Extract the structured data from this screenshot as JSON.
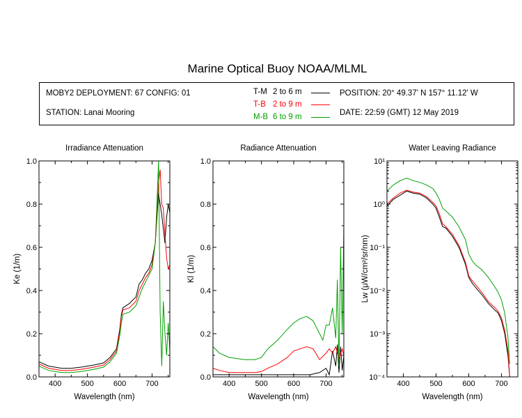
{
  "title": "Marine Optical Buoy NOAA/MLML",
  "header": {
    "deployment": "MOBY2 DEPLOYMENT: 67 CONFIG: 01",
    "station": "STATION: Lanai Mooring",
    "position": "POSITION: 20° 49.37' N   157° 11.12' W",
    "date": "DATE: 22:59 (GMT) 12 May 2019"
  },
  "legend": [
    {
      "code": "T-M",
      "range": "2 to 6  m",
      "color": "#000000"
    },
    {
      "code": "T-B",
      "range": "2 to 9  m",
      "color": "#ff0000"
    },
    {
      "code": "M-B",
      "range": "6 to 9  m",
      "color": "#00a000"
    }
  ],
  "chart_data": [
    {
      "type": "line",
      "title": "Irradiance Attenuation",
      "xlabel": "Wavelength (nm)",
      "ylabel": "Ke  (1/m)",
      "xlim": [
        350,
        755
      ],
      "ylim": [
        0,
        1
      ],
      "xticks": [
        400,
        500,
        600,
        700
      ],
      "yticks": [
        0.0,
        0.2,
        0.4,
        0.6,
        0.8,
        1.0
      ],
      "ytick_labels": [
        "0.0",
        "0.2",
        "0.4",
        "0.6",
        "0.8",
        "1.0"
      ],
      "series": [
        {
          "name": "T-M",
          "color": "#000000",
          "x": [
            350,
            380,
            400,
            420,
            450,
            480,
            500,
            520,
            550,
            570,
            590,
            600,
            605,
            610,
            630,
            650,
            660,
            670,
            680,
            690,
            700,
            710,
            720,
            730,
            740,
            745,
            750,
            755
          ],
          "y": [
            0.07,
            0.05,
            0.045,
            0.04,
            0.04,
            0.045,
            0.05,
            0.055,
            0.065,
            0.09,
            0.13,
            0.22,
            0.29,
            0.32,
            0.34,
            0.37,
            0.43,
            0.45,
            0.48,
            0.5,
            0.54,
            0.62,
            0.85,
            0.75,
            0.62,
            0.74,
            0.8,
            0.76
          ]
        },
        {
          "name": "T-B",
          "color": "#ff0000",
          "x": [
            350,
            380,
            400,
            420,
            450,
            480,
            500,
            520,
            550,
            570,
            590,
            600,
            605,
            610,
            630,
            650,
            660,
            670,
            680,
            690,
            700,
            710,
            720,
            725,
            730,
            735,
            740,
            745,
            750,
            755
          ],
          "y": [
            0.06,
            0.04,
            0.035,
            0.03,
            0.03,
            0.035,
            0.04,
            0.045,
            0.055,
            0.08,
            0.12,
            0.21,
            0.28,
            0.31,
            0.32,
            0.35,
            0.4,
            0.43,
            0.46,
            0.48,
            0.52,
            0.62,
            0.9,
            0.96,
            0.8,
            0.78,
            0.66,
            0.55,
            0.5,
            0.52
          ]
        },
        {
          "name": "M-B",
          "color": "#00a000",
          "x": [
            350,
            380,
            400,
            420,
            450,
            480,
            500,
            520,
            550,
            570,
            590,
            600,
            605,
            610,
            630,
            650,
            660,
            670,
            680,
            690,
            700,
            710,
            715,
            720,
            725,
            730,
            735,
            740,
            745,
            750,
            755
          ],
          "y": [
            0.05,
            0.03,
            0.025,
            0.02,
            0.02,
            0.025,
            0.03,
            0.035,
            0.045,
            0.07,
            0.11,
            0.19,
            0.25,
            0.29,
            0.3,
            0.33,
            0.37,
            0.41,
            0.44,
            0.47,
            0.5,
            0.62,
            0.8,
            1.0,
            0.3,
            0.05,
            0.35,
            0.2,
            0.1,
            0.25,
            0.12
          ]
        }
      ]
    },
    {
      "type": "line",
      "title": "Radiance Attenuation",
      "xlabel": "Wavelength (nm)",
      "ylabel": "Kl  (1/m)",
      "xlim": [
        350,
        755
      ],
      "ylim": [
        0,
        1
      ],
      "xticks": [
        400,
        500,
        600,
        700
      ],
      "yticks": [
        0.0,
        0.2,
        0.4,
        0.6,
        0.8,
        1.0
      ],
      "ytick_labels": [
        "0.0",
        "0.2",
        "0.4",
        "0.6",
        "0.8",
        "1.0"
      ],
      "series": [
        {
          "name": "T-M",
          "color": "#000000",
          "x": [
            350,
            380,
            400,
            450,
            500,
            550,
            600,
            650,
            680,
            700,
            710,
            720,
            730,
            735,
            740,
            745,
            750,
            755
          ],
          "y": [
            0.01,
            0.01,
            0.01,
            0.01,
            0.01,
            0.01,
            0.01,
            0.01,
            0.02,
            0.04,
            0.01,
            0.12,
            0.05,
            0.15,
            0.02,
            0.14,
            0.03,
            0.1
          ]
        },
        {
          "name": "T-B",
          "color": "#ff0000",
          "x": [
            350,
            370,
            400,
            450,
            480,
            500,
            520,
            550,
            580,
            600,
            620,
            640,
            660,
            680,
            700,
            710,
            720,
            730,
            740,
            750,
            755
          ],
          "y": [
            0.04,
            0.03,
            0.02,
            0.02,
            0.02,
            0.025,
            0.04,
            0.06,
            0.09,
            0.12,
            0.13,
            0.14,
            0.13,
            0.08,
            0.11,
            0.13,
            0.11,
            0.14,
            0.08,
            0.13,
            0.1
          ]
        },
        {
          "name": "M-B",
          "color": "#00a000",
          "x": [
            350,
            370,
            400,
            450,
            480,
            500,
            520,
            550,
            580,
            600,
            620,
            640,
            660,
            680,
            690,
            700,
            710,
            720,
            730,
            735,
            740,
            745,
            750,
            755
          ],
          "y": [
            0.14,
            0.11,
            0.09,
            0.08,
            0.08,
            0.09,
            0.13,
            0.17,
            0.22,
            0.25,
            0.27,
            0.28,
            0.26,
            0.2,
            0.17,
            0.24,
            0.24,
            0.32,
            0.18,
            0.45,
            0.05,
            0.6,
            0.2,
            0.7
          ]
        }
      ]
    },
    {
      "type": "line",
      "title": "Water Leaving Radiance",
      "xlabel": "Wavelength (nm)",
      "ylabel": "Lw  (μW/cm²/sr/nm)",
      "yscale": "log",
      "xlim": [
        350,
        750
      ],
      "ylim": [
        0.0001,
        10
      ],
      "xticks": [
        400,
        500,
        600,
        700
      ],
      "yticks": [
        0.0001,
        0.001,
        0.01,
        0.1,
        1,
        10
      ],
      "ytick_labels": [
        "10⁻⁴",
        "10⁻³",
        "10⁻²",
        "10⁻¹",
        "10⁰",
        "10¹"
      ],
      "series": [
        {
          "name": "T-M",
          "color": "#000000",
          "x": [
            350,
            370,
            390,
            410,
            430,
            450,
            470,
            490,
            500,
            510,
            520,
            530,
            550,
            570,
            590,
            600,
            610,
            620,
            640,
            660,
            680,
            690,
            700,
            710,
            720,
            725
          ],
          "y": [
            0.9,
            1.3,
            1.6,
            2.0,
            1.8,
            1.7,
            1.4,
            1.0,
            0.8,
            0.5,
            0.3,
            0.28,
            0.18,
            0.1,
            0.04,
            0.02,
            0.015,
            0.012,
            0.008,
            0.005,
            0.0035,
            0.003,
            0.002,
            0.001,
            0.0003,
            0.0001
          ]
        },
        {
          "name": "T-B",
          "color": "#ff0000",
          "x": [
            350,
            370,
            390,
            410,
            430,
            450,
            470,
            490,
            500,
            510,
            520,
            530,
            550,
            570,
            590,
            600,
            610,
            620,
            640,
            660,
            680,
            690,
            700,
            710,
            720,
            725
          ],
          "y": [
            1.0,
            1.4,
            1.8,
            2.1,
            1.9,
            1.8,
            1.5,
            1.1,
            0.9,
            0.6,
            0.35,
            0.3,
            0.2,
            0.11,
            0.045,
            0.022,
            0.017,
            0.014,
            0.009,
            0.0055,
            0.004,
            0.0033,
            0.0023,
            0.0012,
            0.0004,
            0.0001
          ]
        },
        {
          "name": "M-B",
          "color": "#00a000",
          "x": [
            350,
            370,
            390,
            410,
            430,
            450,
            470,
            490,
            500,
            510,
            520,
            530,
            550,
            570,
            590,
            600,
            610,
            620,
            640,
            660,
            680,
            690,
            700,
            710,
            720,
            725
          ],
          "y": [
            2.0,
            2.8,
            3.5,
            4.0,
            3.5,
            3.2,
            2.8,
            2.3,
            1.8,
            1.3,
            0.8,
            0.7,
            0.5,
            0.3,
            0.15,
            0.07,
            0.05,
            0.04,
            0.03,
            0.02,
            0.012,
            0.009,
            0.006,
            0.003,
            0.0008,
            0.0002
          ]
        }
      ]
    }
  ]
}
